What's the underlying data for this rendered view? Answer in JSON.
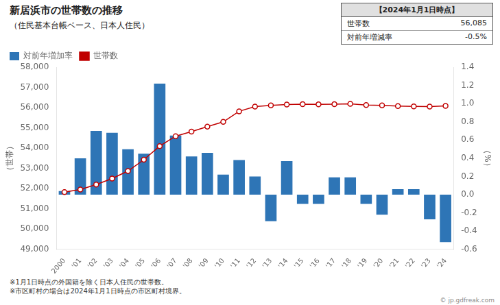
{
  "chart_data": {
    "type": "bar",
    "title": "新居浜市の世帯数の推移",
    "subtitle": "（住民基本台帳ベース、日本人住民）",
    "ylabel": "（世帯）",
    "y2label": "（%）",
    "categories": [
      "2000",
      "'01",
      "'02",
      "'03",
      "'04",
      "'05",
      "'06",
      "'07",
      "'08",
      "'09",
      "'10",
      "'11",
      "'12",
      "'13",
      "'14",
      "'15",
      "'16",
      "'17",
      "'18",
      "'19",
      "'20",
      "'21",
      "'22",
      "'23",
      "'24"
    ],
    "series": [
      {
        "name": "対前年増加率",
        "type": "bar",
        "axis": "y2",
        "color": "#2E75B6",
        "values": [
          0.04,
          0.4,
          0.7,
          0.68,
          0.5,
          0.45,
          1.22,
          0.65,
          0.42,
          0.46,
          0.22,
          0.38,
          0.2,
          -0.29,
          0.37,
          -0.1,
          -0.1,
          0.19,
          0.19,
          -0.1,
          -0.22,
          0.06,
          0.06,
          -0.27,
          -0.52
        ]
      },
      {
        "name": "世帯数",
        "type": "line",
        "color": "#C00000",
        "marker": "circle",
        "values": [
          51830,
          51960,
          52200,
          52500,
          52870,
          53430,
          54100,
          54590,
          54820,
          55060,
          55300,
          55820,
          56050,
          56110,
          56155,
          56170,
          56160,
          56170,
          56185,
          56130,
          56110,
          56080,
          56060,
          56055,
          56085
        ]
      }
    ],
    "ylim": [
      49000,
      58000
    ],
    "yticks": [
      {
        "value": 49000,
        "label": "49,000"
      },
      {
        "value": 50000,
        "label": "50,000"
      },
      {
        "value": 51000,
        "label": "51,000"
      },
      {
        "value": 52000,
        "label": "52,000"
      },
      {
        "value": 53000,
        "label": "53,000"
      },
      {
        "value": 54000,
        "label": "54,000"
      },
      {
        "value": 55000,
        "label": "55,000"
      },
      {
        "value": 56000,
        "label": "56,000"
      },
      {
        "value": 57000,
        "label": "57,000"
      },
      {
        "value": 58000,
        "label": "58,000"
      }
    ],
    "y2lim": [
      -0.6,
      1.4
    ],
    "y2ticks": [
      -0.6,
      -0.4,
      -0.2,
      {
        "value": 0,
        "label": "0.0"
      },
      0.2,
      0.4,
      0.6,
      0.8,
      {
        "value": 1,
        "label": "1.0"
      },
      1.2,
      1.4
    ],
    "grid": false,
    "legend": "upper left",
    "info_box": {
      "title": "【2024年1月1日時点】",
      "rows": [
        [
          "世帯数",
          "56,085"
        ],
        [
          "対前年増減率",
          "-0.5%"
        ]
      ]
    },
    "notes": [
      "※1月1日時点の外国籍を除く日本人住民の世帯数。",
      "※市区町村の場合は2024年1月1日時点の市区町村境界。"
    ],
    "copyright": "© jp.gdfreak.com"
  }
}
